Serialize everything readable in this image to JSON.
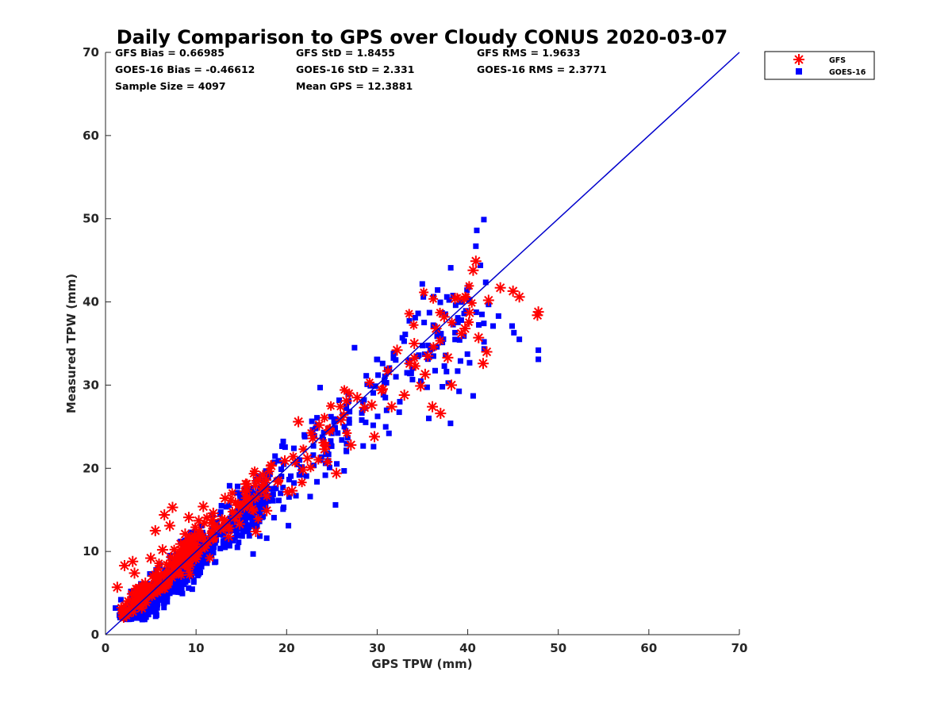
{
  "chart_data": {
    "type": "scatter",
    "title": "Daily Comparison to GPS over Cloudy CONUS 2020-03-07",
    "xlabel": "GPS TPW (mm)",
    "ylabel": "Measured TPW (mm)",
    "xlim": [
      0,
      70
    ],
    "ylim": [
      0,
      70
    ],
    "xticks": [
      "0",
      "10",
      "20",
      "30",
      "40",
      "50",
      "60",
      "70"
    ],
    "yticks": [
      "0",
      "10",
      "20",
      "30",
      "40",
      "50",
      "60",
      "70"
    ],
    "grid": false,
    "legend_position": "outside-top-right",
    "stats": [
      [
        "GFS Bias = 0.66985",
        "GFS StD = 1.8455",
        "GFS RMS = 1.9633"
      ],
      [
        "GOES-16 Bias = -0.46612",
        "GOES-16 StD = 2.331",
        "GOES-16 RMS = 2.3771"
      ],
      [
        "Sample Size = 4097",
        "Mean GPS = 12.3881",
        ""
      ]
    ],
    "reference_line": {
      "x": [
        0,
        70
      ],
      "y": [
        0,
        70
      ],
      "color": "#0000cc"
    },
    "series": [
      {
        "name": "GFS",
        "marker": "asterisk",
        "color": "#ff0000",
        "points": [
          [
            1.3,
            5.7
          ],
          [
            2.1,
            8.3
          ],
          [
            2.5,
            2.6
          ],
          [
            3.0,
            8.8
          ],
          [
            3.2,
            7.4
          ],
          [
            3.6,
            4.0
          ],
          [
            4.0,
            3.2
          ],
          [
            4.4,
            6.2
          ],
          [
            5.0,
            9.2
          ],
          [
            5.5,
            12.5
          ],
          [
            5.8,
            6.8
          ],
          [
            6.3,
            10.2
          ],
          [
            6.5,
            14.4
          ],
          [
            7.1,
            13.1
          ],
          [
            7.4,
            15.3
          ],
          [
            7.9,
            8.8
          ],
          [
            8.3,
            10.9
          ],
          [
            8.8,
            12.1
          ],
          [
            9.2,
            14.1
          ],
          [
            9.6,
            9.6
          ],
          [
            10.3,
            13.7
          ],
          [
            10.8,
            15.4
          ],
          [
            11.3,
            11.2
          ],
          [
            11.9,
            14.6
          ],
          [
            12.4,
            12.9
          ],
          [
            13.2,
            16.4
          ],
          [
            13.6,
            11.8
          ],
          [
            14.3,
            14.1
          ],
          [
            14.8,
            13.3
          ],
          [
            15.5,
            18.1
          ],
          [
            16.2,
            15.1
          ],
          [
            16.6,
            12.4
          ],
          [
            17.2,
            17.2
          ],
          [
            17.8,
            14.9
          ],
          [
            18.3,
            20.3
          ],
          [
            19.0,
            18.4
          ],
          [
            19.8,
            20.9
          ],
          [
            20.6,
            17.3
          ],
          [
            21.3,
            25.6
          ],
          [
            21.8,
            19.8
          ],
          [
            22.3,
            21.2
          ],
          [
            22.9,
            23.6
          ],
          [
            23.6,
            25.2
          ],
          [
            24.2,
            22.3
          ],
          [
            24.7,
            24.6
          ],
          [
            25.5,
            19.4
          ],
          [
            26.0,
            25.8
          ],
          [
            26.6,
            28.1
          ],
          [
            27.1,
            22.8
          ],
          [
            27.8,
            28.5
          ],
          [
            28.6,
            27.3
          ],
          [
            29.4,
            27.6
          ],
          [
            29.7,
            23.8
          ],
          [
            30.5,
            29.4
          ],
          [
            31.2,
            31.7
          ],
          [
            31.6,
            27.4
          ],
          [
            32.2,
            34.2
          ],
          [
            33.0,
            28.8
          ],
          [
            33.6,
            32.6
          ],
          [
            34.1,
            35.0
          ],
          [
            34.8,
            29.9
          ],
          [
            35.3,
            31.3
          ],
          [
            35.6,
            33.5
          ],
          [
            36.1,
            27.4
          ],
          [
            36.5,
            36.8
          ],
          [
            37.0,
            26.6
          ],
          [
            37.4,
            38.2
          ],
          [
            37.8,
            33.3
          ],
          [
            38.2,
            30.0
          ],
          [
            38.6,
            40.4
          ],
          [
            39.3,
            36.2
          ],
          [
            39.7,
            36.8
          ],
          [
            40.2,
            38.7
          ],
          [
            40.6,
            43.8
          ],
          [
            40.9,
            44.9
          ],
          [
            41.2,
            35.7
          ],
          [
            41.7,
            32.6
          ],
          [
            42.1,
            34.0
          ],
          [
            42.3,
            40.2
          ],
          [
            43.6,
            41.7
          ],
          [
            45.0,
            41.3
          ],
          [
            45.7,
            40.6
          ],
          [
            47.7,
            38.4
          ],
          [
            47.8,
            38.8
          ]
        ]
      },
      {
        "name": "GOES-16",
        "marker": "square",
        "color": "#0000ff",
        "points": [
          [
            1.1,
            3.2
          ],
          [
            1.7,
            4.2
          ],
          [
            2.3,
            2.6
          ],
          [
            2.8,
            5.2
          ],
          [
            3.4,
            3.5
          ],
          [
            3.9,
            6.1
          ],
          [
            4.4,
            4.3
          ],
          [
            4.9,
            7.3
          ],
          [
            5.5,
            5.6
          ],
          [
            6.0,
            8.4
          ],
          [
            6.6,
            6.9
          ],
          [
            7.1,
            9.5
          ],
          [
            7.7,
            8.0
          ],
          [
            8.3,
            11.2
          ],
          [
            8.8,
            9.0
          ],
          [
            9.4,
            12.3
          ],
          [
            10.0,
            10.4
          ],
          [
            10.6,
            13.1
          ],
          [
            11.2,
            8.6
          ],
          [
            11.8,
            14.4
          ],
          [
            12.2,
            12.0
          ],
          [
            12.8,
            15.5
          ],
          [
            13.2,
            10.5
          ],
          [
            13.7,
            17.9
          ],
          [
            14.2,
            13.8
          ],
          [
            14.7,
            11.1
          ],
          [
            15.2,
            16.6
          ],
          [
            15.8,
            12.9
          ],
          [
            16.3,
            9.7
          ],
          [
            16.9,
            18.6
          ],
          [
            17.4,
            14.2
          ],
          [
            17.8,
            11.6
          ],
          [
            18.5,
            16.1
          ],
          [
            19.1,
            20.9
          ],
          [
            19.6,
            17.7
          ],
          [
            20.2,
            13.1
          ],
          [
            20.8,
            22.4
          ],
          [
            21.4,
            19.2
          ],
          [
            22.0,
            23.8
          ],
          [
            22.6,
            16.6
          ],
          [
            23.2,
            24.8
          ],
          [
            23.7,
            29.7
          ],
          [
            24.3,
            20.6
          ],
          [
            24.9,
            26.2
          ],
          [
            25.4,
            15.6
          ],
          [
            26.1,
            23.4
          ],
          [
            26.8,
            28.9
          ],
          [
            27.5,
            34.5
          ],
          [
            28.3,
            25.8
          ],
          [
            28.9,
            30.1
          ],
          [
            29.6,
            22.6
          ],
          [
            30.1,
            31.2
          ],
          [
            30.6,
            32.6
          ],
          [
            31.3,
            24.2
          ],
          [
            31.8,
            33.8
          ],
          [
            32.5,
            28.0
          ],
          [
            33.1,
            36.1
          ],
          [
            33.6,
            31.4
          ],
          [
            34.2,
            38.1
          ],
          [
            34.6,
            33.6
          ],
          [
            35.1,
            40.6
          ],
          [
            35.7,
            26.0
          ],
          [
            36.2,
            37.2
          ],
          [
            36.6,
            34.6
          ],
          [
            37.2,
            29.8
          ],
          [
            37.7,
            40.6
          ],
          [
            38.1,
            25.4
          ],
          [
            38.6,
            36.3
          ],
          [
            39.2,
            32.9
          ],
          [
            39.6,
            38.6
          ],
          [
            40.1,
            41.8
          ],
          [
            40.6,
            28.7
          ],
          [
            40.9,
            46.7
          ],
          [
            41.0,
            48.6
          ],
          [
            41.4,
            44.4
          ],
          [
            41.8,
            35.2
          ],
          [
            42.3,
            39.7
          ],
          [
            42.8,
            37.1
          ],
          [
            43.4,
            38.3
          ],
          [
            44.9,
            37.1
          ],
          [
            45.1,
            36.3
          ],
          [
            45.7,
            35.5
          ],
          [
            47.8,
            34.2
          ],
          [
            47.8,
            33.1
          ]
        ]
      }
    ]
  }
}
